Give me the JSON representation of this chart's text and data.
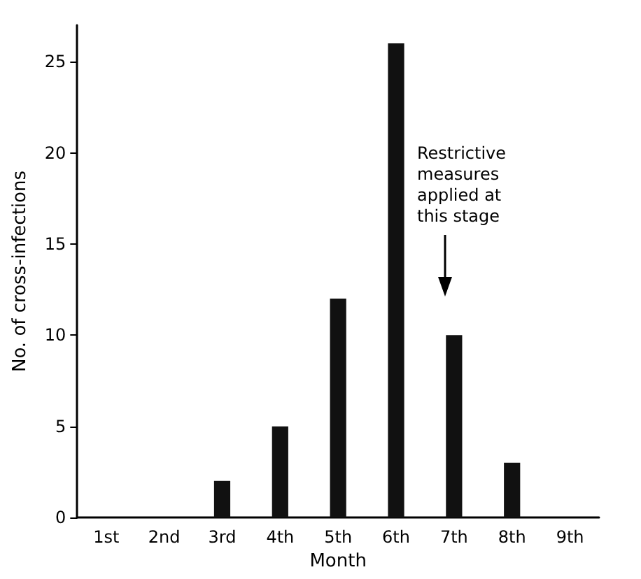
{
  "chart_data": {
    "type": "bar",
    "xlabel": "Month",
    "ylabel": "No. of cross-infections",
    "categories": [
      "1st",
      "2nd",
      "3rd",
      "4th",
      "5th",
      "6th",
      "7th",
      "8th",
      "9th"
    ],
    "values": [
      0,
      0,
      2,
      5,
      12,
      26,
      10,
      3,
      0
    ],
    "color": "#111111",
    "ylim": [
      0,
      27
    ],
    "yticks": [
      0,
      5,
      10,
      15,
      20,
      25
    ],
    "grid": false,
    "annotations": [
      "Restrictive\nmeasures\napplied at\nthis stage"
    ]
  }
}
